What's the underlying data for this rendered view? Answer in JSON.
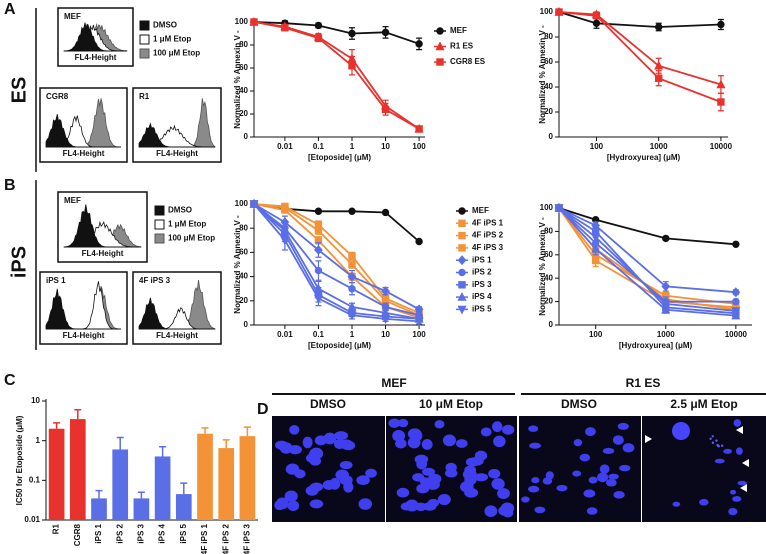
{
  "figure_labels": [
    "A",
    "B",
    "C",
    "D"
  ],
  "panel_a": {
    "row_label": "ES",
    "histograms": [
      {
        "title": "MEF",
        "xlabel": "FL4-Height"
      },
      {
        "title": "CGR8",
        "xlabel": "FL4-Height"
      },
      {
        "title": "R1",
        "xlabel": "FL4-Height"
      }
    ],
    "legend": [
      "DMSO",
      "1 μM Etop",
      "100 μM Etop"
    ]
  },
  "panel_b": {
    "row_label": "iPS",
    "histograms": [
      {
        "title": "MEF",
        "xlabel": "FL4-Height"
      },
      {
        "title": "iPS 1",
        "xlabel": "FL4-Height"
      },
      {
        "title": "4F iPS 3",
        "xlabel": "FL4-Height"
      }
    ],
    "legend": [
      "DMSO",
      "1 μM Etop",
      "100 μM Etop"
    ]
  },
  "panel_d": {
    "groups": [
      "MEF",
      "R1 ES"
    ],
    "conditions": [
      "DMSO",
      "10 μM Etop",
      "DMSO",
      "2.5 μM Etop"
    ]
  },
  "chart_data": [
    {
      "type": "line",
      "log_x": true,
      "legend": true,
      "xlabel": "[Etoposide] (μM)",
      "ylabel": "Normalized % Annexin V -",
      "x": [
        0.0012,
        0.01,
        0.1,
        1,
        10,
        100
      ],
      "xlim": [
        0.0012,
        150
      ],
      "xticks": [
        0.01,
        0.1,
        1,
        10,
        100
      ],
      "ylim": [
        0,
        100
      ],
      "yticks": [
        0,
        20,
        40,
        60,
        80,
        100
      ],
      "series": [
        {
          "name": "MEF",
          "color": "#111111",
          "marker": "circle",
          "values": [
            100,
            99,
            97,
            90,
            91,
            81
          ],
          "errors": [
            0,
            2,
            2,
            5,
            5,
            5
          ]
        },
        {
          "name": "R1 ES",
          "color": "#e8322d",
          "marker": "triangle",
          "values": [
            100,
            96,
            87,
            68,
            27,
            7
          ],
          "errors": [
            0,
            2,
            3,
            8,
            5,
            1
          ]
        },
        {
          "name": "CGR8 ES",
          "color": "#e8322d",
          "marker": "square",
          "values": [
            100,
            95,
            86,
            62,
            24,
            7
          ],
          "errors": [
            0,
            2,
            3,
            8,
            5,
            1
          ]
        }
      ]
    },
    {
      "type": "line",
      "log_x": true,
      "legend": false,
      "xlabel": "[Hydroxyurea] (μM)",
      "ylabel": "Normalized % Annexin V -",
      "x": [
        25,
        100,
        1000,
        10000
      ],
      "xlim": [
        25,
        13000
      ],
      "xticks": [
        100,
        1000,
        10000
      ],
      "ylim": [
        0,
        100
      ],
      "yticks": [
        0,
        20,
        40,
        60,
        80,
        100
      ],
      "series": [
        {
          "color": "#111111",
          "marker": "circle",
          "values": [
            100,
            91,
            88,
            90
          ],
          "errors": [
            0,
            4,
            3,
            4
          ]
        },
        {
          "color": "#e8322d",
          "marker": "triangle",
          "values": [
            100,
            98,
            57,
            42
          ],
          "errors": [
            0,
            2,
            6,
            7
          ]
        },
        {
          "color": "#e8322d",
          "marker": "square",
          "values": [
            100,
            97,
            47,
            28
          ],
          "errors": [
            0,
            2,
            6,
            7
          ]
        }
      ]
    },
    {
      "type": "line",
      "log_x": true,
      "legend": true,
      "xlabel": "[Etoposide] (μM)",
      "ylabel": "Normalized % Annexin V -",
      "x": [
        0.0012,
        0.01,
        0.1,
        1,
        10,
        100
      ],
      "xlim": [
        0.0012,
        150
      ],
      "xticks": [
        0.01,
        0.1,
        1,
        10,
        100
      ],
      "ylim": [
        0,
        100
      ],
      "yticks": [
        0,
        20,
        40,
        60,
        80,
        100
      ],
      "series": [
        {
          "name": "MEF",
          "color": "#111111",
          "marker": "circle",
          "values": [
            100,
            96,
            94,
            94,
            93,
            69
          ]
        },
        {
          "name": "4F iPS 1",
          "color": "#f39237",
          "marker": "square",
          "values": [
            100,
            98,
            83,
            57,
            22,
            10
          ],
          "errors": [
            0,
            2,
            3,
            3,
            3,
            2
          ]
        },
        {
          "name": "4F iPS 2",
          "color": "#f39237",
          "marker": "square",
          "values": [
            100,
            97,
            78,
            50,
            20,
            8
          ],
          "errors": [
            0,
            2,
            3,
            3,
            3,
            2
          ]
        },
        {
          "name": "4F iPS 3",
          "color": "#f39237",
          "marker": "square",
          "values": [
            100,
            95,
            70,
            40,
            15,
            6
          ],
          "errors": [
            0,
            2,
            3,
            3,
            3,
            2
          ]
        },
        {
          "name": "iPS 1",
          "color": "#5a6ee6",
          "marker": "diamond",
          "values": [
            100,
            85,
            62,
            40,
            28,
            13
          ],
          "errors": [
            0,
            5,
            6,
            5,
            3,
            2
          ]
        },
        {
          "name": "iPS 2",
          "color": "#5a6ee6",
          "marker": "circle",
          "values": [
            100,
            80,
            45,
            30,
            15,
            8
          ],
          "errors": [
            0,
            6,
            8,
            5,
            3,
            2
          ]
        },
        {
          "name": "iPS 3",
          "color": "#5a6ee6",
          "marker": "square",
          "values": [
            100,
            75,
            25,
            10,
            7,
            5
          ],
          "errors": [
            0,
            6,
            6,
            3,
            2,
            2
          ]
        },
        {
          "name": "iPS 4",
          "color": "#5a6ee6",
          "marker": "triangle",
          "values": [
            100,
            78,
            30,
            15,
            10,
            5
          ],
          "errors": [
            0,
            6,
            6,
            3,
            2,
            2
          ]
        },
        {
          "name": "iPS 5",
          "color": "#5a6ee6",
          "marker": "triangle-down",
          "values": [
            100,
            70,
            22,
            8,
            5,
            3
          ],
          "errors": [
            0,
            8,
            6,
            3,
            2,
            2
          ]
        }
      ]
    },
    {
      "type": "line",
      "log_x": true,
      "legend": false,
      "xlabel": "[Hydroxyurea] (μM)",
      "ylabel": "Normalized % Annexin V -",
      "x": [
        30,
        100,
        1000,
        10000
      ],
      "xlim": [
        30,
        17000
      ],
      "xticks": [
        100,
        1000,
        10000
      ],
      "ylim": [
        0,
        100
      ],
      "yticks": [
        0,
        20,
        40,
        60,
        80,
        100
      ],
      "series": [
        {
          "color": "#111111",
          "marker": "circle",
          "values": [
            100,
            90,
            74,
            69
          ]
        },
        {
          "color": "#f39237",
          "marker": "square",
          "values": [
            100,
            55,
            20,
            15
          ],
          "errors": [
            0,
            5,
            3,
            3
          ]
        },
        {
          "color": "#f39237",
          "marker": "square",
          "values": [
            100,
            60,
            25,
            18
          ],
          "errors": [
            0,
            5,
            3,
            3
          ]
        },
        {
          "color": "#f39237",
          "marker": "square",
          "values": [
            100,
            65,
            22,
            13
          ],
          "errors": [
            0,
            5,
            3,
            3
          ]
        },
        {
          "color": "#5a6ee6",
          "marker": "diamond",
          "values": [
            100,
            85,
            33,
            28
          ],
          "errors": [
            0,
            3,
            4,
            2
          ]
        },
        {
          "color": "#5a6ee6",
          "marker": "circle",
          "values": [
            100,
            70,
            20,
            20
          ],
          "errors": [
            0,
            5,
            4,
            2
          ]
        },
        {
          "color": "#5a6ee6",
          "marker": "square",
          "values": [
            100,
            80,
            15,
            10
          ],
          "errors": [
            0,
            4,
            3,
            2
          ]
        },
        {
          "color": "#5a6ee6",
          "marker": "triangle",
          "values": [
            100,
            65,
            13,
            8
          ],
          "errors": [
            0,
            5,
            3,
            2
          ]
        },
        {
          "color": "#5a6ee6",
          "marker": "triangle-down",
          "values": [
            100,
            75,
            18,
            12
          ],
          "errors": [
            0,
            4,
            3,
            2
          ]
        }
      ]
    },
    {
      "type": "bar",
      "log_y": true,
      "ylabel": "IC50 for Etoposide (μM)",
      "categories": [
        "R1",
        "CGR8",
        "iPS 1",
        "iPS 2",
        "iPS 3",
        "iPS 4",
        "iPS 5",
        "4F iPS 1",
        "4F iPS 2",
        "4F iPS 3"
      ],
      "values": [
        2,
        3.5,
        0.035,
        0.6,
        0.035,
        0.4,
        0.045,
        1.5,
        0.65,
        1.3
      ],
      "errors": [
        0.8,
        2.5,
        0.02,
        0.6,
        0.015,
        0.3,
        0.04,
        0.6,
        0.4,
        0.9
      ],
      "colors": [
        "#e8322d",
        "#e8322d",
        "#5a6ee6",
        "#5a6ee6",
        "#5a6ee6",
        "#5a6ee6",
        "#5a6ee6",
        "#f39237",
        "#f39237",
        "#f39237"
      ],
      "ylim": [
        0.01,
        10
      ],
      "yticks": [
        0.01,
        0.1,
        1,
        10
      ]
    }
  ]
}
